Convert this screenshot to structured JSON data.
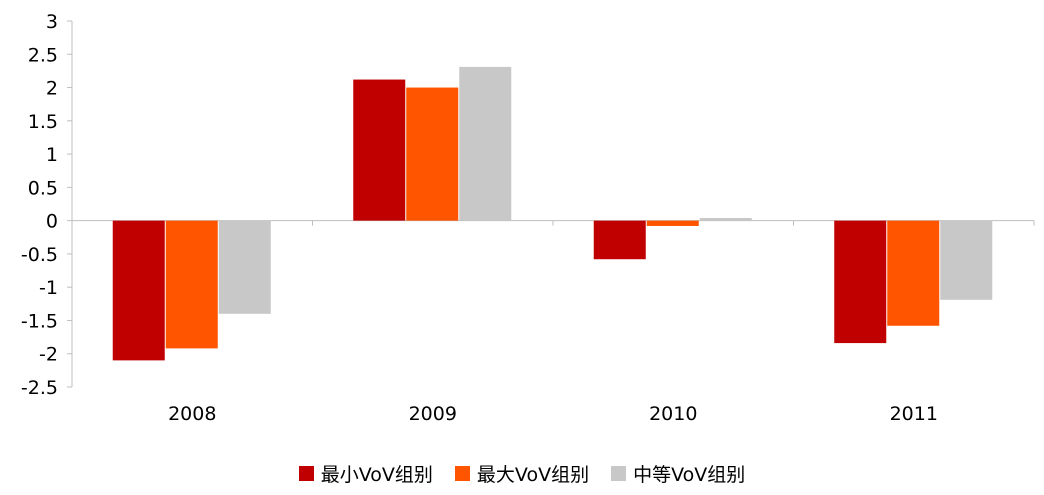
{
  "chart_data": {
    "type": "bar",
    "categories": [
      "2008",
      "2009",
      "2010",
      "2011"
    ],
    "series": [
      {
        "name": "最小VoV组别",
        "color": "#C00000",
        "values": [
          -2.1,
          2.12,
          -0.58,
          -1.84
        ]
      },
      {
        "name": "最大VoV组别",
        "color": "#FF5500",
        "values": [
          -1.92,
          2.0,
          -0.08,
          -1.58
        ]
      },
      {
        "name": "中等VoV组别",
        "color": "#C8C8C8",
        "values": [
          -1.4,
          2.31,
          0.04,
          -1.19
        ]
      }
    ],
    "yticks": [
      "3",
      "2.5",
      "2",
      "1.5",
      "1",
      "0.5",
      "0",
      "-0.5",
      "-1",
      "-1.5",
      "-2",
      "-2.5"
    ],
    "ylim": [
      -2.5,
      3
    ],
    "grid": false,
    "legend_position": "bottom"
  }
}
